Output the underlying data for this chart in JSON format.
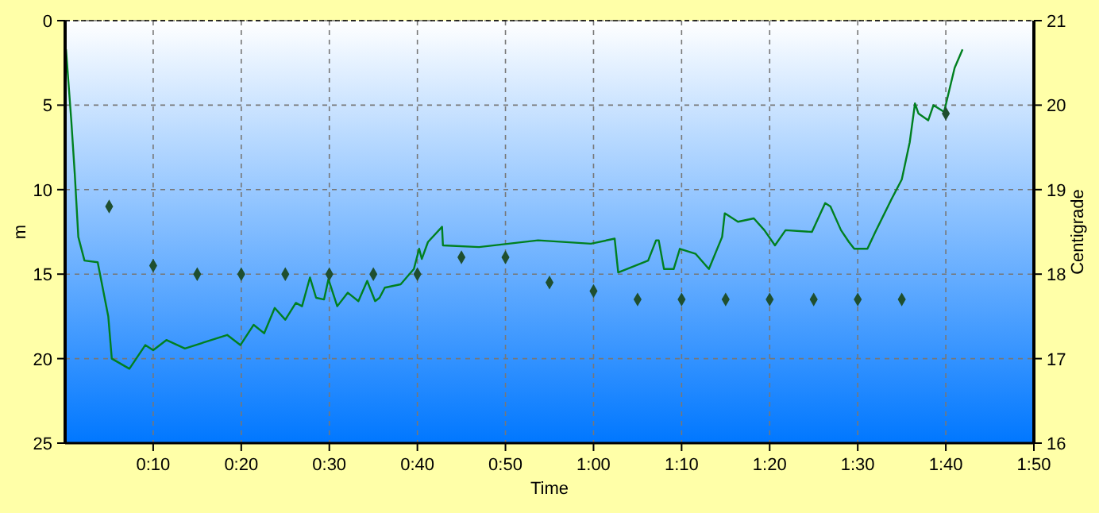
{
  "chart_data": {
    "type": "line",
    "xlabel": "Time",
    "ylabel": "m",
    "y2label": "Centigrade",
    "xlim": [
      0,
      110
    ],
    "xticks": [
      {
        "value": 10,
        "label": "0:10"
      },
      {
        "value": 20,
        "label": "0:20"
      },
      {
        "value": 30,
        "label": "0:30"
      },
      {
        "value": 40,
        "label": "0:40"
      },
      {
        "value": 50,
        "label": "0:50"
      },
      {
        "value": 60,
        "label": "1:00"
      },
      {
        "value": 70,
        "label": "1:10"
      },
      {
        "value": 80,
        "label": "1:20"
      },
      {
        "value": 90,
        "label": "1:30"
      },
      {
        "value": 100,
        "label": "1:40"
      },
      {
        "value": 110,
        "label": "1:50"
      }
    ],
    "ylim": [
      25,
      0
    ],
    "yticks": [
      0,
      5,
      10,
      15,
      20,
      25
    ],
    "y2lim": [
      16,
      21
    ],
    "y2ticks": [
      16,
      17,
      18,
      19,
      20,
      21
    ],
    "grid": true,
    "series": [
      {
        "color": "#008020",
        "marker": "none",
        "x": [
          0.1,
          0.7,
          1.1,
          1.5,
          2.2,
          3.7,
          4.9,
          5.3,
          7.3,
          9.1,
          10,
          11.5,
          13.6,
          18.4,
          19.9,
          21.4,
          22.6,
          23.8,
          25,
          26.2,
          26.9,
          27.8,
          28.5,
          29.4,
          29.9,
          30.9,
          32.1,
          33.3,
          34.3,
          35.2,
          35.7,
          36.3,
          38.1,
          39.6,
          40.2,
          40.5,
          41.2,
          42.8,
          42.9,
          47,
          53.7,
          59.7,
          62.4,
          62.8,
          66.2,
          67.1,
          67.4,
          68,
          69.1,
          69.8,
          71.6,
          73.1,
          74.6,
          74.9,
          76.4,
          78.2,
          79.4,
          80.6,
          81.8,
          84.8,
          86.3,
          86.9,
          88.1,
          89,
          89.6,
          91.1,
          92,
          93.8,
          95,
          95.9,
          96.5,
          96.9,
          98,
          98.6,
          99.5,
          99.8,
          101,
          101.9
        ],
        "values": [
          1.7,
          5.9,
          9.1,
          12.8,
          14.2,
          14.3,
          17.5,
          20,
          20.6,
          19.2,
          19.5,
          18.9,
          19.4,
          18.6,
          19.2,
          18,
          18.5,
          17,
          17.7,
          16.7,
          16.9,
          15.2,
          16.4,
          16.5,
          15.3,
          16.9,
          16.1,
          16.6,
          15.4,
          16.6,
          16.4,
          15.8,
          15.6,
          14.7,
          13.5,
          14.1,
          13.1,
          12.2,
          13.3,
          13.4,
          13,
          13.2,
          12.9,
          14.9,
          14.2,
          13,
          13,
          14.7,
          14.7,
          13.5,
          13.8,
          14.7,
          12.8,
          11.4,
          11.9,
          11.7,
          12.4,
          13.3,
          12.4,
          12.5,
          10.8,
          11,
          12.4,
          13.1,
          13.5,
          13.5,
          12.5,
          10.6,
          9.4,
          7.2,
          4.9,
          5.5,
          5.9,
          5,
          5.3,
          5.4,
          2.8,
          1.7
        ]
      },
      {
        "type": "scatter",
        "axis": "y2",
        "color": "#1f4f2f",
        "marker": "diamond",
        "x": [
          5,
          10,
          15,
          20,
          25,
          30,
          35,
          40,
          45,
          50,
          55,
          60,
          65,
          70,
          75,
          80,
          85,
          90,
          95,
          100
        ],
        "values": [
          18.8,
          18.1,
          18,
          18,
          18,
          18,
          18,
          18,
          18.2,
          18.2,
          17.9,
          17.8,
          17.7,
          17.7,
          17.7,
          17.7,
          17.7,
          17.7,
          17.7,
          19.9
        ]
      }
    ]
  }
}
